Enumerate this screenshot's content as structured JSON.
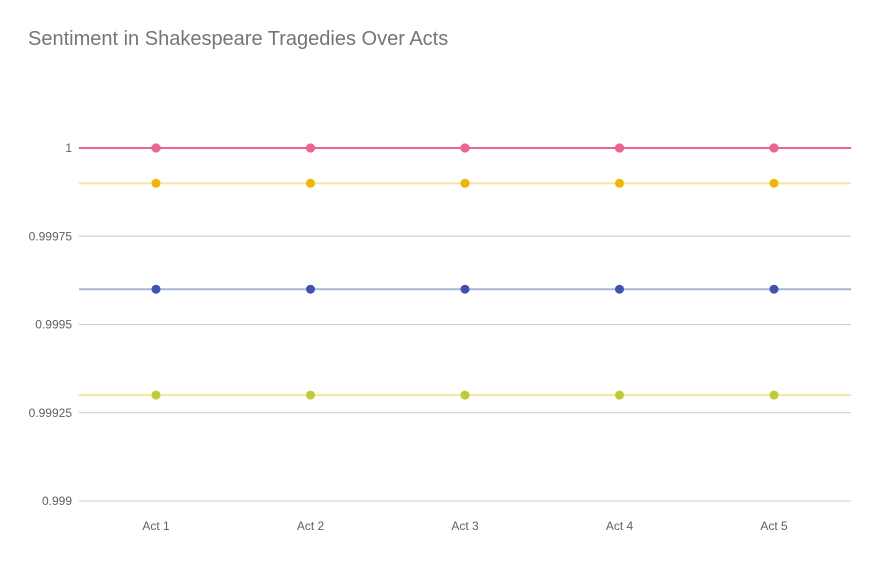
{
  "chart_data": {
    "type": "line",
    "title": "Sentiment in Shakespeare Tragedies Over Acts",
    "xlabel": "",
    "ylabel": "",
    "categories": [
      "Act 1",
      "Act 2",
      "Act 3",
      "Act 4",
      "Act 5"
    ],
    "ylim": [
      0.999,
      1.0
    ],
    "yticks": [
      1,
      0.99975,
      0.9995,
      0.99925,
      0.999
    ],
    "ytick_labels": [
      "1",
      "0.99975",
      "0.9995",
      "0.99925",
      "0.999"
    ],
    "grid": true,
    "legend": "none",
    "series": [
      {
        "color": "#c0ca33",
        "line_color": "#f0e9a0",
        "values": [
          0.9993,
          0.9993,
          0.9993,
          0.9993,
          0.9993
        ]
      },
      {
        "color": "#3f51b5",
        "line_color": "#a9b4d9",
        "values": [
          0.9996,
          0.9996,
          0.9996,
          0.9996,
          0.9996
        ]
      },
      {
        "color": "#f4b400",
        "line_color": "#f5e6a6",
        "values": [
          0.9999,
          0.9999,
          0.9999,
          0.9999,
          0.9999
        ]
      },
      {
        "color": "#5e35b1",
        "line_color": "#7e57c2",
        "values": [
          1.0,
          1.0,
          1.0,
          1.0,
          1.0
        ]
      },
      {
        "color": "#f06292",
        "line_color": "#f06292",
        "values": [
          1.0,
          1.0,
          1.0,
          1.0,
          1.0
        ]
      }
    ]
  }
}
